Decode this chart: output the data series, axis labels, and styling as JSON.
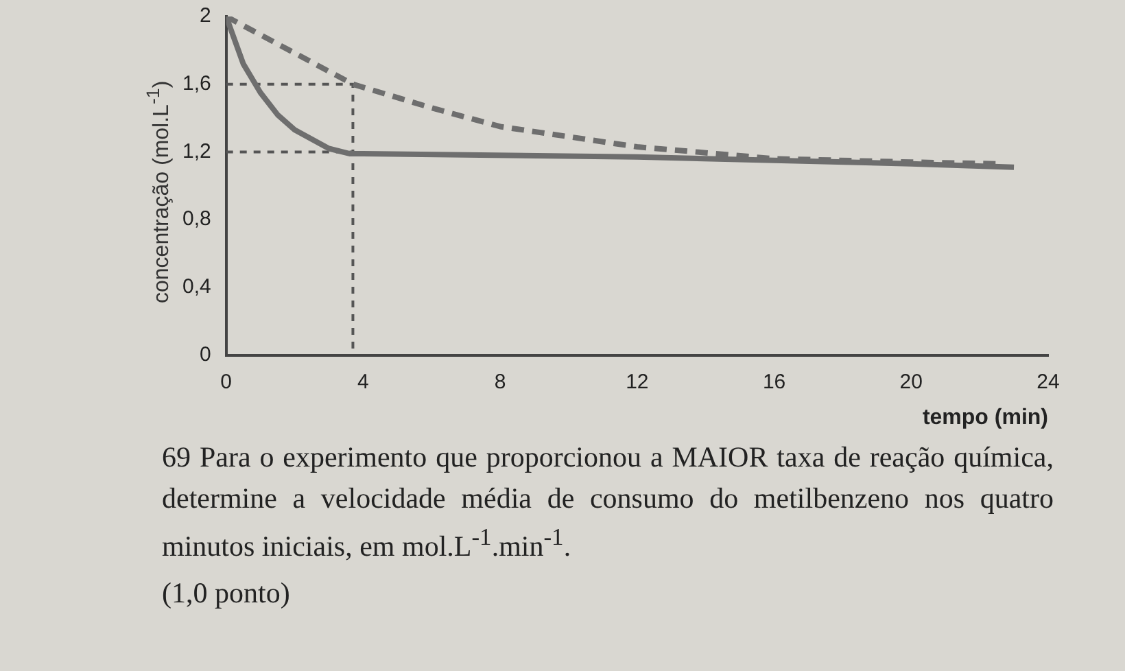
{
  "chart_data": {
    "type": "line",
    "xlabel": "tempo (min)",
    "ylabel": "concentração (mol.L$^{-1}$)",
    "xlim": [
      0,
      24
    ],
    "xticks": [
      0,
      4,
      8,
      12,
      16,
      20,
      24
    ],
    "ylim": [
      0,
      2
    ],
    "yticks": [
      0,
      {
        "value": 0.4,
        "label": "0,4"
      },
      {
        "value": 0.8,
        "label": "0,8"
      },
      {
        "value": 1.2,
        "label": "1,2"
      },
      {
        "value": 1.6,
        "label": "1,6"
      },
      2
    ],
    "grid": false,
    "legend": false,
    "marker": "none",
    "series": [
      {
        "color": "#6e6e6e",
        "line_style": "solid",
        "x": [
          0,
          0.5,
          1,
          1.5,
          2,
          3,
          3.6,
          4,
          12,
          20,
          23
        ],
        "values": [
          2,
          1.72,
          1.55,
          1.42,
          1.33,
          1.22,
          1.19,
          1.19,
          1.17,
          1.13,
          1.11
        ]
      },
      {
        "color": "#6e6e6e",
        "line_style": "dashed",
        "x": [
          0,
          3.7,
          6,
          8,
          12,
          16,
          20,
          22.5
        ],
        "values": [
          2,
          1.6,
          1.46,
          1.35,
          1.23,
          1.16,
          1.14,
          1.13
        ]
      },
      {
        "color": "#555555",
        "line_style": "dotted",
        "x": [
          0,
          3.7,
          3.7
        ],
        "values": [
          1.6,
          1.6,
          0
        ]
      },
      {
        "color": "#555555",
        "line_style": "dotted",
        "x": [
          0,
          3.7
        ],
        "values": [
          1.2,
          1.2
        ]
      }
    ],
    "annotations": [
      "69 Para o experimento que proporcionou a MAIOR taxa de reação química, determine a velocidade média de consumo do metilbenzeno nos quatro minutos iniciais, em mol.L$^{-1}$.min$^{-1}$.",
      "(1,0 ponto)"
    ]
  }
}
